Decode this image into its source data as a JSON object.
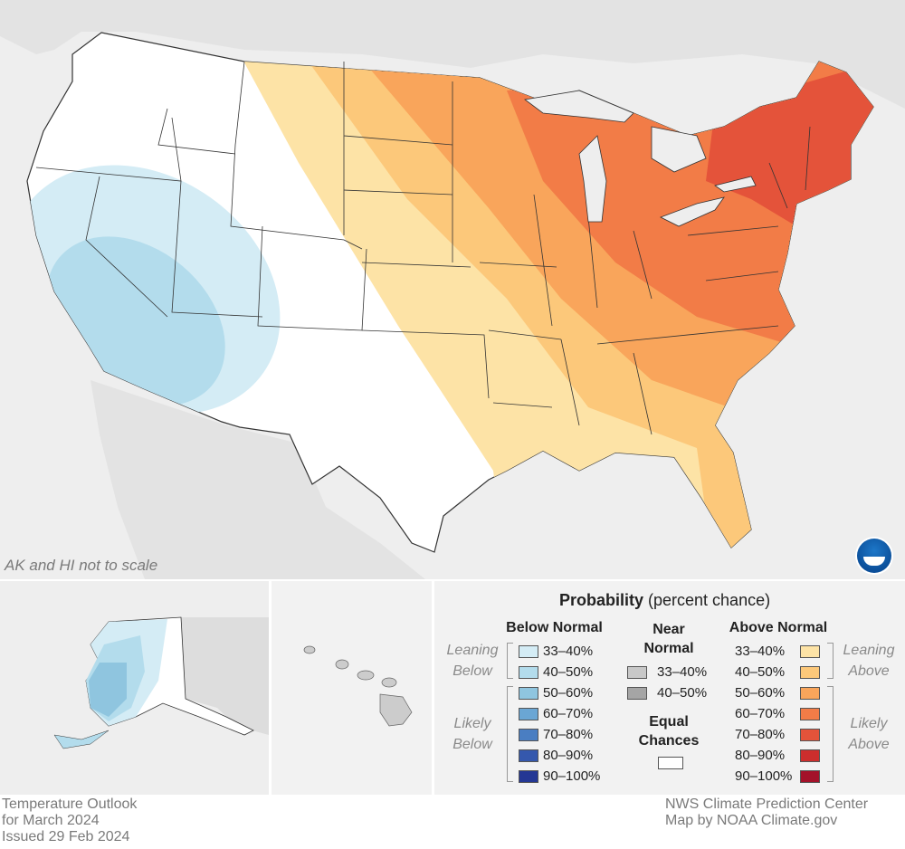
{
  "map": {
    "scale_note": "AK and HI not to scale",
    "logo_icon": "noaa-logo-icon"
  },
  "legend": {
    "title_bold": "Probability",
    "title_rest": " (percent chance)",
    "below_normal": {
      "heading": "Below Normal",
      "leaning_label": "Leaning Below",
      "likely_label": "Likely Below",
      "categories": [
        {
          "label": "33–40%",
          "color": "#d4ecf5"
        },
        {
          "label": "40–50%",
          "color": "#b3dcec"
        },
        {
          "label": "50–60%",
          "color": "#8fc5df"
        },
        {
          "label": "60–70%",
          "color": "#6aa6d4"
        },
        {
          "label": "70–80%",
          "color": "#4a7ec2"
        },
        {
          "label": "80–90%",
          "color": "#3558ad"
        },
        {
          "label": "90–100%",
          "color": "#243794"
        }
      ]
    },
    "near_normal": {
      "heading": "Near Normal",
      "categories": [
        {
          "label": "33–40%",
          "color": "#c8c8c8"
        },
        {
          "label": "40–50%",
          "color": "#a5a5a5"
        }
      ]
    },
    "equal_chances": {
      "heading": "Equal Chances",
      "color": "#ffffff"
    },
    "above_normal": {
      "heading": "Above Normal",
      "leaning_label": "Leaning Above",
      "likely_label": "Likely Above",
      "categories": [
        {
          "label": "33–40%",
          "color": "#fde3a6"
        },
        {
          "label": "40–50%",
          "color": "#fcc87a"
        },
        {
          "label": "50–60%",
          "color": "#f9a55b"
        },
        {
          "label": "60–70%",
          "color": "#f27c47"
        },
        {
          "label": "70–80%",
          "color": "#e4533a"
        },
        {
          "label": "80–90%",
          "color": "#cc2e2d"
        },
        {
          "label": "90–100%",
          "color": "#a3122a"
        }
      ]
    }
  },
  "footer": {
    "left_line1": "Temperature Outlook",
    "left_line2": "for March 2024",
    "left_line3": "Issued 29 Feb 2024",
    "right_line1": "NWS Climate Prediction Center",
    "right_line2": "Map by NOAA Climate.gov"
  }
}
